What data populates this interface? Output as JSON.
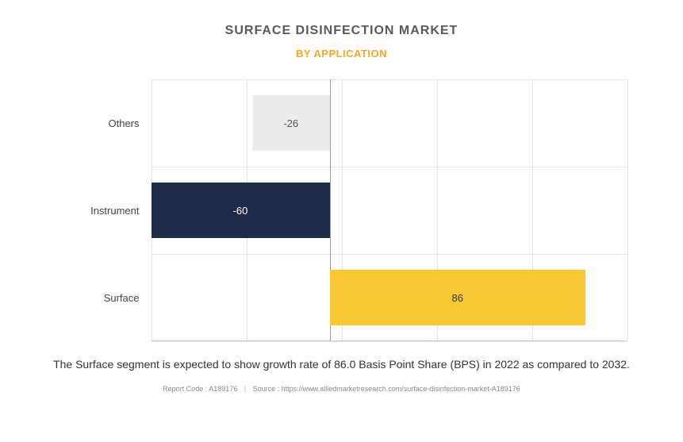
{
  "title": "SURFACE DISINFECTION MARKET",
  "subtitle": "BY APPLICATION",
  "chart": {
    "type": "bar-horizontal",
    "xmin": -60,
    "xmax": 100,
    "categories": [
      "Others",
      "Instrument",
      "Surface"
    ],
    "values": [
      -26,
      -60,
      86
    ],
    "bar_colors": [
      "#ececec",
      "#1e2a4a",
      "#f9c935"
    ],
    "label_colors": [
      "#555555",
      "#ffffff",
      "#333333"
    ],
    "background": "#ffffff",
    "grid_color": "#e5e5e5",
    "zero_line_color": "#999999",
    "grid_v_count": 5,
    "axis_fontsize": 13
  },
  "caption": "The Surface segment is expected to show growth rate of 86.0 Basis Point Share (BPS) in 2022 as compared to 2032.",
  "footer": {
    "report_code_label": "Report Code : ",
    "report_code": "A189176",
    "source_label": "Source : ",
    "source": "https://www.alliedmarketresearch.com/surface-disinfection-market-A189176"
  }
}
